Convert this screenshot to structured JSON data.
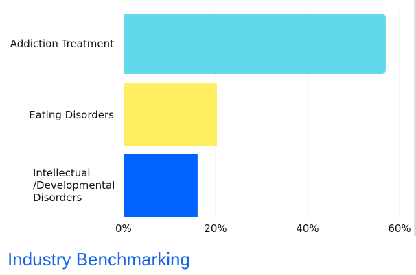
{
  "heading": "Industry Benchmarking",
  "colors": {
    "heading": "#1464e6",
    "grid": "#ececec",
    "text": "#111111"
  },
  "chart_data": {
    "type": "bar",
    "orientation": "horizontal",
    "categories": [
      [
        "Addiction Treatment"
      ],
      [
        "Eating Disorders"
      ],
      [
        "Intellectual",
        "/Developmental",
        "Disorders"
      ]
    ],
    "values": [
      57,
      20.3,
      16.1
    ],
    "bar_colors": [
      "#62d9ea",
      "#ffee60",
      "#0062ff"
    ],
    "x_ticks": [
      "0%",
      "20%",
      "40%",
      "60%"
    ],
    "xlim": [
      0,
      60
    ],
    "grid": "vertical",
    "legend": "none"
  }
}
